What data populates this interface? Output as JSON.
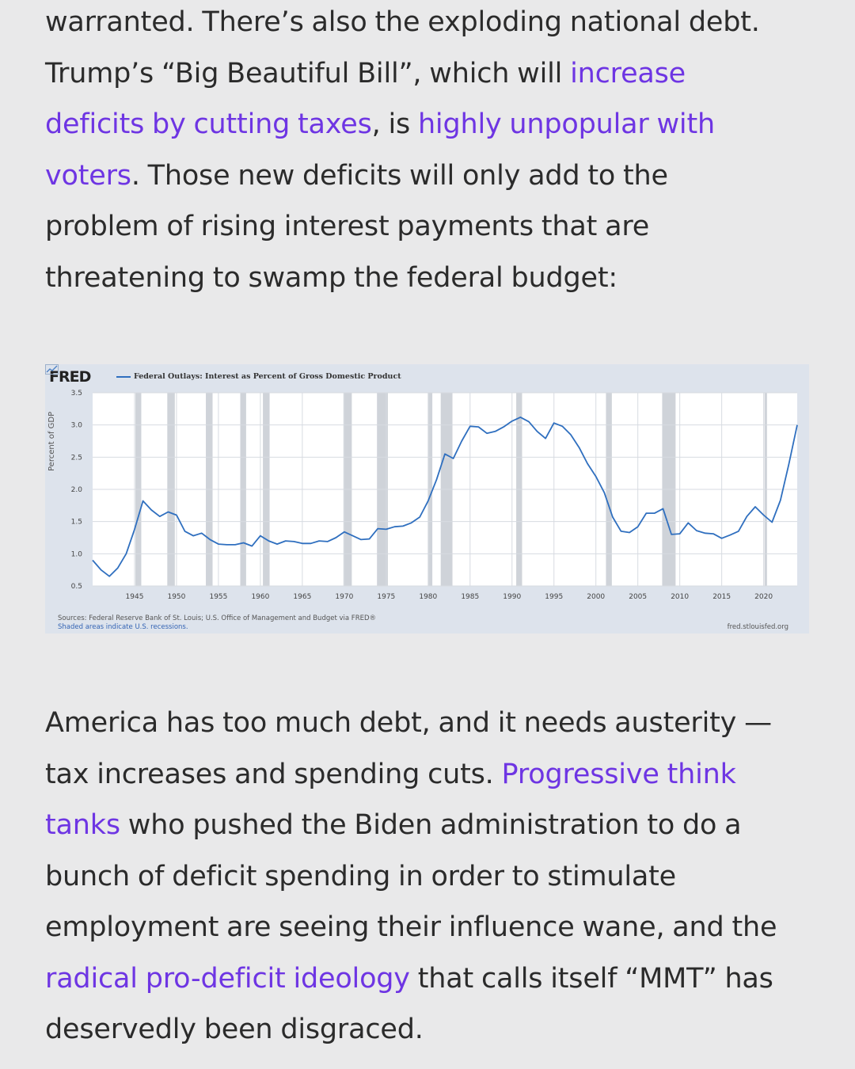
{
  "article": {
    "para1": {
      "l1": "warranted. There’s also the exploding national debt.",
      "l2_pre": "Trump’s “Big Beautiful Bill”, which will ",
      "l2_link": "increase",
      "l3_link1": "deficits by cutting taxes",
      "l3_mid": ", is ",
      "l3_link2": "highly unpopular with",
      "l4_link": "voters",
      "l4_post": ". Those new deficits will only add to the",
      "l5": "problem of rising interest payments that are",
      "l6": "threatening to swamp the federal budget:"
    },
    "para2": {
      "l1": "America has too much debt, and it needs austerity —",
      "l2_pre": "tax increases and spending cuts. ",
      "l2_link": "Progressive think",
      "l3_link": "tanks",
      "l3_post": " who pushed the Biden administration to do a",
      "l4": "bunch of deficit spending in order to stimulate",
      "l5": "employment are seeing their influence wane, and the",
      "l6_link": "radical pro-deficit ideology",
      "l6_post": " that calls itself “MMT” has",
      "l7": "deservedly been disgraced."
    },
    "link_color": "#6e35e3",
    "text_color": "#2b2b2b"
  },
  "chart_data": {
    "type": "line",
    "brand": "FRED",
    "title": "Federal Outlays: Interest as Percent of Gross Domestic Product",
    "ylabel": "Percent of GDP",
    "xlabel": "",
    "ylim": [
      0.5,
      3.5
    ],
    "yticks": [
      "0.5",
      "1.0",
      "1.5",
      "2.0",
      "2.5",
      "3.0",
      "3.5"
    ],
    "xlim": [
      1940,
      2024
    ],
    "xticks": [
      "1945",
      "1950",
      "1955",
      "1960",
      "1965",
      "1970",
      "1975",
      "1980",
      "1985",
      "1990",
      "1995",
      "2000",
      "2005",
      "2010",
      "2015",
      "2020"
    ],
    "grid": true,
    "line_color": "#2f6fbf",
    "recessions": [
      [
        1945.1,
        1945.8
      ],
      [
        1948.9,
        1949.8
      ],
      [
        1953.5,
        1954.3
      ],
      [
        1957.6,
        1958.3
      ],
      [
        1960.3,
        1961.1
      ],
      [
        1969.9,
        1970.9
      ],
      [
        1973.9,
        1975.2
      ],
      [
        1980.0,
        1980.5
      ],
      [
        1981.5,
        1982.9
      ],
      [
        1990.5,
        1991.2
      ],
      [
        2001.2,
        2001.9
      ],
      [
        2007.9,
        2009.5
      ],
      [
        2020.1,
        2020.4
      ]
    ],
    "series": [
      {
        "x": [
          1940,
          1941,
          1942,
          1943,
          1944,
          1945,
          1946,
          1947,
          1948,
          1949,
          1950,
          1951,
          1952,
          1953,
          1954,
          1955,
          1956,
          1957,
          1958,
          1959,
          1960,
          1961,
          1962,
          1963,
          1964,
          1965,
          1966,
          1967,
          1968,
          1969,
          1970,
          1971,
          1972,
          1973,
          1974,
          1975,
          1976,
          1977,
          1978,
          1979,
          1980,
          1981,
          1982,
          1983,
          1984,
          1985,
          1986,
          1987,
          1988,
          1989,
          1990,
          1991,
          1992,
          1993,
          1994,
          1995,
          1996,
          1997,
          1998,
          1999,
          2000,
          2001,
          2002,
          2003,
          2004,
          2005,
          2006,
          2007,
          2008,
          2009,
          2010,
          2011,
          2012,
          2013,
          2014,
          2015,
          2016,
          2017,
          2018,
          2019,
          2020,
          2021,
          2022,
          2023,
          2024
        ],
        "y": [
          0.9,
          0.75,
          0.65,
          0.78,
          1.0,
          1.38,
          1.82,
          1.68,
          1.58,
          1.65,
          1.6,
          1.35,
          1.28,
          1.32,
          1.22,
          1.15,
          1.14,
          1.14,
          1.17,
          1.12,
          1.28,
          1.2,
          1.15,
          1.2,
          1.19,
          1.16,
          1.16,
          1.2,
          1.19,
          1.25,
          1.34,
          1.28,
          1.22,
          1.23,
          1.39,
          1.38,
          1.42,
          1.43,
          1.48,
          1.57,
          1.82,
          2.15,
          2.55,
          2.48,
          2.75,
          2.98,
          2.97,
          2.87,
          2.9,
          2.97,
          3.06,
          3.12,
          3.05,
          2.9,
          2.79,
          3.03,
          2.98,
          2.85,
          2.65,
          2.4,
          2.2,
          1.95,
          1.57,
          1.35,
          1.33,
          1.42,
          1.63,
          1.63,
          1.7,
          1.3,
          1.31,
          1.48,
          1.36,
          1.32,
          1.31,
          1.24,
          1.29,
          1.35,
          1.58,
          1.73,
          1.6,
          1.49,
          1.83,
          2.39,
          3.0
        ]
      }
    ],
    "sources": "Sources: Federal Reserve Bank of St. Louis; U.S. Office of Management and Budget via FRED®",
    "note": "Shaded areas indicate U.S. recessions.",
    "site": "fred.stlouisfed.org"
  }
}
